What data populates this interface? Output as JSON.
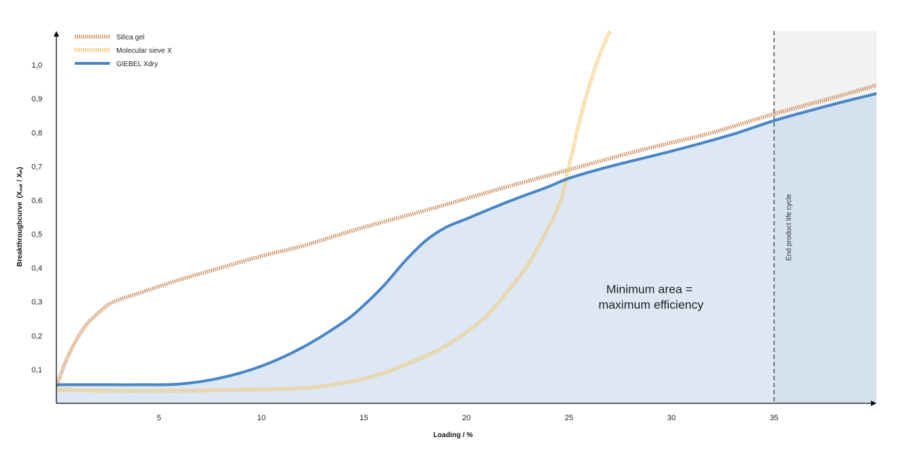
{
  "chart_data": {
    "type": "line",
    "title": "",
    "xlabel": "Loading / %",
    "ylabel": "Breakthroughcurve",
    "ylabel_formula": "(Xₒᵤₜ / Xᵢₙ)",
    "xlim": [
      0,
      40
    ],
    "ylim": [
      0,
      1.1
    ],
    "x_ticks": [
      5,
      10,
      15,
      20,
      25,
      30,
      35
    ],
    "x_tick_labels": [
      "5",
      "10",
      "15",
      "20",
      "25",
      "30",
      "35"
    ],
    "y_ticks": [
      0.1,
      0.2,
      0.3,
      0.4,
      0.5,
      0.6,
      0.7,
      0.8,
      0.9,
      1.0
    ],
    "y_tick_labels": [
      "0,1",
      "0,2",
      "0,3",
      "0,4",
      "0,5",
      "0,6",
      "0,7",
      "0,8",
      "0,9",
      "1,0"
    ],
    "grid": false,
    "legend_position": "top-left",
    "series": [
      {
        "name": "Silica gel",
        "color": "#c98a55",
        "style": "dotted",
        "points": [
          [
            0,
            0.05
          ],
          [
            0.5,
            0.13
          ],
          [
            1,
            0.19
          ],
          [
            1.5,
            0.235
          ],
          [
            2,
            0.265
          ],
          [
            2.5,
            0.29
          ],
          [
            3,
            0.305
          ],
          [
            4,
            0.325
          ],
          [
            5,
            0.345
          ],
          [
            6,
            0.365
          ],
          [
            8,
            0.4
          ],
          [
            10,
            0.435
          ],
          [
            12,
            0.465
          ],
          [
            15,
            0.52
          ],
          [
            18,
            0.57
          ],
          [
            20,
            0.605
          ],
          [
            22,
            0.64
          ],
          [
            25,
            0.69
          ],
          [
            28,
            0.74
          ],
          [
            30,
            0.77
          ],
          [
            32,
            0.8
          ],
          [
            35,
            0.855
          ],
          [
            38,
            0.905
          ],
          [
            40,
            0.94
          ]
        ]
      },
      {
        "name": "Molecular sieve X",
        "color": "#f2c466",
        "style": "dotted",
        "points": [
          [
            0,
            0.04
          ],
          [
            3,
            0.037
          ],
          [
            6,
            0.037
          ],
          [
            9,
            0.04
          ],
          [
            12,
            0.045
          ],
          [
            14,
            0.06
          ],
          [
            16,
            0.09
          ],
          [
            18,
            0.14
          ],
          [
            19,
            0.17
          ],
          [
            20,
            0.21
          ],
          [
            21,
            0.26
          ],
          [
            22,
            0.33
          ],
          [
            23,
            0.41
          ],
          [
            24,
            0.52
          ],
          [
            24.6,
            0.6
          ],
          [
            25,
            0.7
          ],
          [
            25.5,
            0.83
          ],
          [
            26,
            0.94
          ],
          [
            26.5,
            1.03
          ],
          [
            27,
            1.1
          ]
        ]
      },
      {
        "name": "GIEBEL Xdry",
        "color": "#4a86c5",
        "style": "solid",
        "points": [
          [
            0,
            0.055
          ],
          [
            2,
            0.055
          ],
          [
            4,
            0.055
          ],
          [
            6,
            0.057
          ],
          [
            8,
            0.075
          ],
          [
            10,
            0.11
          ],
          [
            12,
            0.165
          ],
          [
            14,
            0.24
          ],
          [
            15,
            0.29
          ],
          [
            16,
            0.35
          ],
          [
            17,
            0.42
          ],
          [
            18,
            0.48
          ],
          [
            19,
            0.52
          ],
          [
            20,
            0.545
          ],
          [
            22,
            0.595
          ],
          [
            24,
            0.64
          ],
          [
            25,
            0.665
          ],
          [
            27,
            0.7
          ],
          [
            30,
            0.745
          ],
          [
            33,
            0.795
          ],
          [
            35,
            0.835
          ],
          [
            38,
            0.885
          ],
          [
            40,
            0.915
          ]
        ]
      }
    ],
    "fill_under_series": "GIEBEL Xdry",
    "fill_color": "#dde8f4",
    "shaded_region_color": "#f2f2f2",
    "shaded_region_fill_color": "#d4e1ef",
    "vertical_line": {
      "x": 35,
      "style": "dashed",
      "label": "End product life cycle"
    },
    "annotation": {
      "lines": [
        "Minimum area =",
        "maximum efficiency"
      ],
      "x": 29,
      "y": 0.3
    }
  }
}
